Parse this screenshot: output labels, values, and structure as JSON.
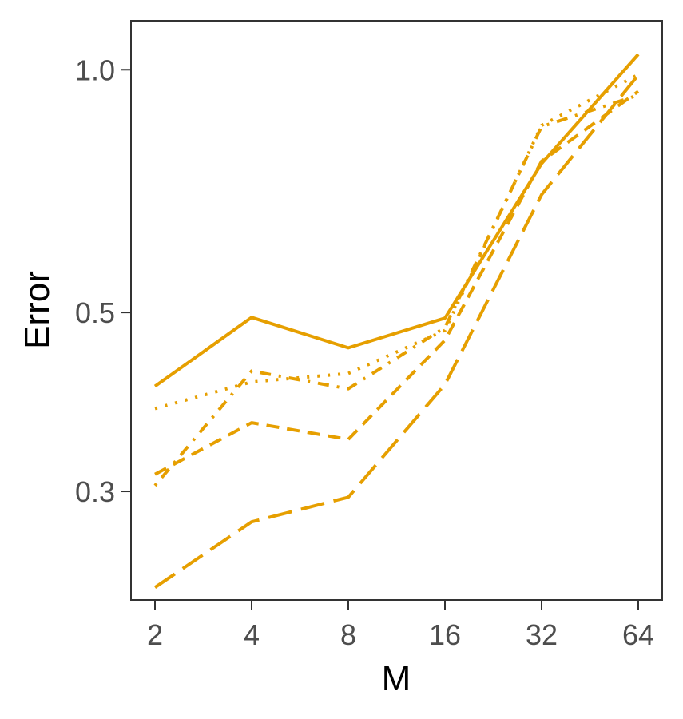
{
  "chart_data": {
    "type": "line",
    "title": "",
    "xlabel": "M",
    "ylabel": "Error",
    "x": [
      2,
      4,
      8,
      16,
      32,
      64
    ],
    "x_tick_labels": [
      "2",
      "4",
      "8",
      "16",
      "32",
      "64"
    ],
    "x_scale": "log2",
    "y_scale": "log10",
    "y_ticks": [
      0.3,
      0.5,
      1.0
    ],
    "y_tick_labels": [
      "0.3",
      "0.5",
      "1.0"
    ],
    "ylim": [
      0.22,
      1.15
    ],
    "grid": false,
    "legend": "none",
    "color": "#E69F00",
    "series": [
      {
        "dash": "solid",
        "values": [
          0.405,
          0.493,
          0.452,
          0.492,
          0.765,
          1.045
        ]
      },
      {
        "dash": "dotted",
        "values": [
          0.38,
          0.41,
          0.42,
          0.475,
          0.853,
          0.986
        ]
      },
      {
        "dash": "dotdash",
        "values": [
          0.305,
          0.423,
          0.402,
          0.479,
          0.85,
          0.93
        ]
      },
      {
        "dash": "dashed",
        "values": [
          0.315,
          0.365,
          0.348,
          0.462,
          0.77,
          0.94
        ]
      },
      {
        "dash": "longdash",
        "values": [
          0.228,
          0.275,
          0.295,
          0.407,
          0.7,
          0.985
        ]
      }
    ]
  }
}
